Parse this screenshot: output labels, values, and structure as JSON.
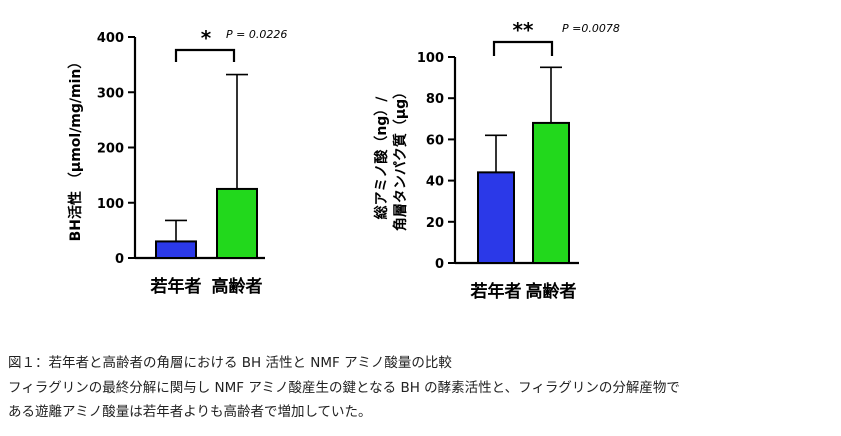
{
  "chart_data": [
    {
      "type": "bar",
      "categories": [
        "若年者",
        "高齢者"
      ],
      "values": [
        30,
        125
      ],
      "error_upper": [
        68,
        332
      ],
      "colors": [
        "#2b39e8",
        "#22d81c"
      ],
      "ylabel": "BH活性 （µmol/mg/min）",
      "ylim": [
        0,
        400
      ],
      "yticks": [
        "0",
        "100",
        "200",
        "300",
        "400"
      ],
      "significance": "*",
      "p_value": "P = 0.0226"
    },
    {
      "type": "bar",
      "categories": [
        "若年者",
        "高齢者"
      ],
      "values": [
        44,
        68
      ],
      "error_upper": [
        62,
        95
      ],
      "colors": [
        "#2b39e8",
        "#22d81c"
      ],
      "ylabel_line1": "総アミノ酸（ng）/",
      "ylabel_line2": "角層タンパク質（µg）",
      "ylim": [
        0,
        100
      ],
      "yticks": [
        "0",
        "20",
        "40",
        "60",
        "80",
        "100"
      ],
      "significance": "**",
      "p_value": "P =0.0078"
    }
  ],
  "caption": {
    "line1": "図１：若年者と高齢者の角層における BH 活性と NMF アミノ酸量の比較",
    "line2": "フィラグリンの最終分解に関与し NMF アミノ酸産生の鍵となる BH の酵素活性と、フィラグリンの分解産物で",
    "line3": "ある遊離アミノ酸量は若年者よりも高齢者で増加していた。"
  }
}
